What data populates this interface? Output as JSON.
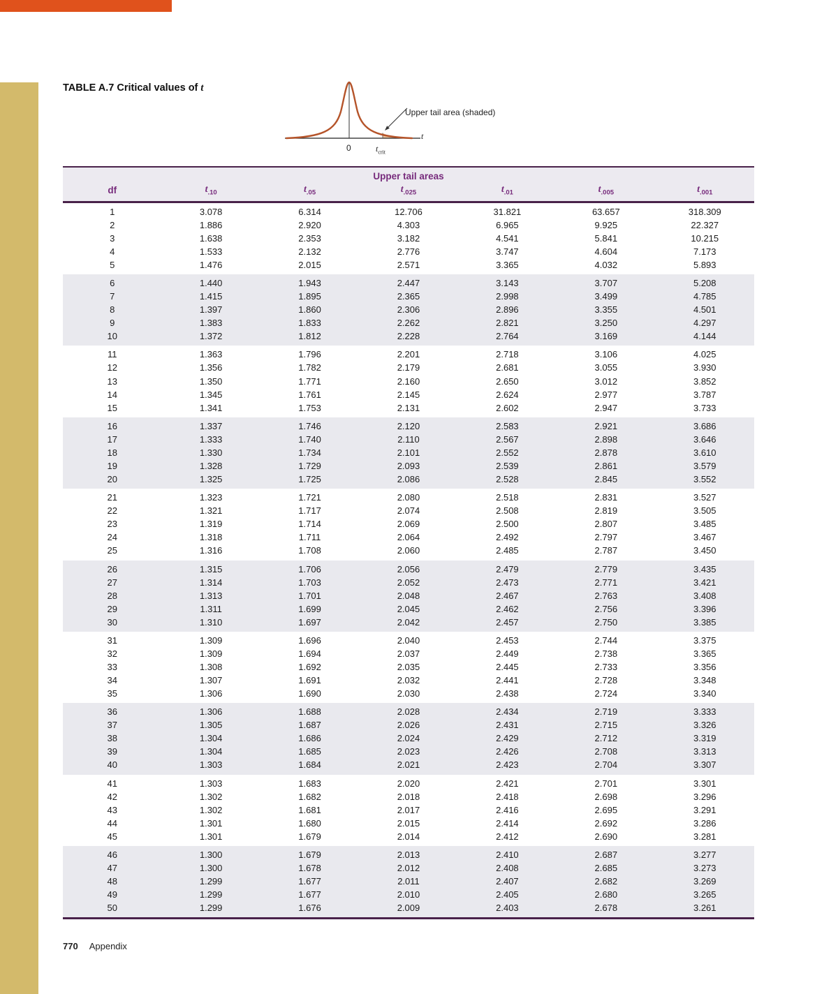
{
  "title": {
    "label": "TABLE A.7",
    "text": " Critical values of ",
    "sym": "t"
  },
  "diagram": {
    "upper_tail_label": "Upper tail area (shaded)",
    "zero_label": "0",
    "tcrit_sym": "t",
    "tcrit_sub": "crit",
    "t_axis_label": "t"
  },
  "table": {
    "header": "Upper tail areas",
    "df_label": "df",
    "columns": [
      {
        "sym": "t",
        "sub": ".10"
      },
      {
        "sym": "t",
        "sub": ".05"
      },
      {
        "sym": "t",
        "sub": ".025"
      },
      {
        "sym": "t",
        "sub": ".01"
      },
      {
        "sym": "t",
        "sub": ".005"
      },
      {
        "sym": "t",
        "sub": ".001"
      }
    ],
    "rows": [
      [
        "1",
        "3.078",
        "6.314",
        "12.706",
        "31.821",
        "63.657",
        "318.309"
      ],
      [
        "2",
        "1.886",
        "2.920",
        "4.303",
        "6.965",
        "9.925",
        "22.327"
      ],
      [
        "3",
        "1.638",
        "2.353",
        "3.182",
        "4.541",
        "5.841",
        "10.215"
      ],
      [
        "4",
        "1.533",
        "2.132",
        "2.776",
        "3.747",
        "4.604",
        "7.173"
      ],
      [
        "5",
        "1.476",
        "2.015",
        "2.571",
        "3.365",
        "4.032",
        "5.893"
      ],
      [
        "6",
        "1.440",
        "1.943",
        "2.447",
        "3.143",
        "3.707",
        "5.208"
      ],
      [
        "7",
        "1.415",
        "1.895",
        "2.365",
        "2.998",
        "3.499",
        "4.785"
      ],
      [
        "8",
        "1.397",
        "1.860",
        "2.306",
        "2.896",
        "3.355",
        "4.501"
      ],
      [
        "9",
        "1.383",
        "1.833",
        "2.262",
        "2.821",
        "3.250",
        "4.297"
      ],
      [
        "10",
        "1.372",
        "1.812",
        "2.228",
        "2.764",
        "3.169",
        "4.144"
      ],
      [
        "11",
        "1.363",
        "1.796",
        "2.201",
        "2.718",
        "3.106",
        "4.025"
      ],
      [
        "12",
        "1.356",
        "1.782",
        "2.179",
        "2.681",
        "3.055",
        "3.930"
      ],
      [
        "13",
        "1.350",
        "1.771",
        "2.160",
        "2.650",
        "3.012",
        "3.852"
      ],
      [
        "14",
        "1.345",
        "1.761",
        "2.145",
        "2.624",
        "2.977",
        "3.787"
      ],
      [
        "15",
        "1.341",
        "1.753",
        "2.131",
        "2.602",
        "2.947",
        "3.733"
      ],
      [
        "16",
        "1.337",
        "1.746",
        "2.120",
        "2.583",
        "2.921",
        "3.686"
      ],
      [
        "17",
        "1.333",
        "1.740",
        "2.110",
        "2.567",
        "2.898",
        "3.646"
      ],
      [
        "18",
        "1.330",
        "1.734",
        "2.101",
        "2.552",
        "2.878",
        "3.610"
      ],
      [
        "19",
        "1.328",
        "1.729",
        "2.093",
        "2.539",
        "2.861",
        "3.579"
      ],
      [
        "20",
        "1.325",
        "1.725",
        "2.086",
        "2.528",
        "2.845",
        "3.552"
      ],
      [
        "21",
        "1.323",
        "1.721",
        "2.080",
        "2.518",
        "2.831",
        "3.527"
      ],
      [
        "22",
        "1.321",
        "1.717",
        "2.074",
        "2.508",
        "2.819",
        "3.505"
      ],
      [
        "23",
        "1.319",
        "1.714",
        "2.069",
        "2.500",
        "2.807",
        "3.485"
      ],
      [
        "24",
        "1.318",
        "1.711",
        "2.064",
        "2.492",
        "2.797",
        "3.467"
      ],
      [
        "25",
        "1.316",
        "1.708",
        "2.060",
        "2.485",
        "2.787",
        "3.450"
      ],
      [
        "26",
        "1.315",
        "1.706",
        "2.056",
        "2.479",
        "2.779",
        "3.435"
      ],
      [
        "27",
        "1.314",
        "1.703",
        "2.052",
        "2.473",
        "2.771",
        "3.421"
      ],
      [
        "28",
        "1.313",
        "1.701",
        "2.048",
        "2.467",
        "2.763",
        "3.408"
      ],
      [
        "29",
        "1.311",
        "1.699",
        "2.045",
        "2.462",
        "2.756",
        "3.396"
      ],
      [
        "30",
        "1.310",
        "1.697",
        "2.042",
        "2.457",
        "2.750",
        "3.385"
      ],
      [
        "31",
        "1.309",
        "1.696",
        "2.040",
        "2.453",
        "2.744",
        "3.375"
      ],
      [
        "32",
        "1.309",
        "1.694",
        "2.037",
        "2.449",
        "2.738",
        "3.365"
      ],
      [
        "33",
        "1.308",
        "1.692",
        "2.035",
        "2.445",
        "2.733",
        "3.356"
      ],
      [
        "34",
        "1.307",
        "1.691",
        "2.032",
        "2.441",
        "2.728",
        "3.348"
      ],
      [
        "35",
        "1.306",
        "1.690",
        "2.030",
        "2.438",
        "2.724",
        "3.340"
      ],
      [
        "36",
        "1.306",
        "1.688",
        "2.028",
        "2.434",
        "2.719",
        "3.333"
      ],
      [
        "37",
        "1.305",
        "1.687",
        "2.026",
        "2.431",
        "2.715",
        "3.326"
      ],
      [
        "38",
        "1.304",
        "1.686",
        "2.024",
        "2.429",
        "2.712",
        "3.319"
      ],
      [
        "39",
        "1.304",
        "1.685",
        "2.023",
        "2.426",
        "2.708",
        "3.313"
      ],
      [
        "40",
        "1.303",
        "1.684",
        "2.021",
        "2.423",
        "2.704",
        "3.307"
      ],
      [
        "41",
        "1.303",
        "1.683",
        "2.020",
        "2.421",
        "2.701",
        "3.301"
      ],
      [
        "42",
        "1.302",
        "1.682",
        "2.018",
        "2.418",
        "2.698",
        "3.296"
      ],
      [
        "43",
        "1.302",
        "1.681",
        "2.017",
        "2.416",
        "2.695",
        "3.291"
      ],
      [
        "44",
        "1.301",
        "1.680",
        "2.015",
        "2.414",
        "2.692",
        "3.286"
      ],
      [
        "45",
        "1.301",
        "1.679",
        "2.014",
        "2.412",
        "2.690",
        "3.281"
      ],
      [
        "46",
        "1.300",
        "1.679",
        "2.013",
        "2.410",
        "2.687",
        "3.277"
      ],
      [
        "47",
        "1.300",
        "1.678",
        "2.012",
        "2.408",
        "2.685",
        "3.273"
      ],
      [
        "48",
        "1.299",
        "1.677",
        "2.011",
        "2.407",
        "2.682",
        "3.269"
      ],
      [
        "49",
        "1.299",
        "1.677",
        "2.010",
        "2.405",
        "2.680",
        "3.265"
      ],
      [
        "50",
        "1.299",
        "1.676",
        "2.009",
        "2.403",
        "2.678",
        "3.261"
      ]
    ]
  },
  "footer": {
    "page": "770",
    "label": "Appendix"
  },
  "colors": {
    "accent_orange": "#e0521c",
    "accent_tan": "#d3ba6b",
    "heading_purple": "#772b7c",
    "rule_purple": "#49224a",
    "band_gray": "#e9e9ee",
    "curve_stroke": "#b5542a",
    "tail_shade": "#efc9a2"
  }
}
